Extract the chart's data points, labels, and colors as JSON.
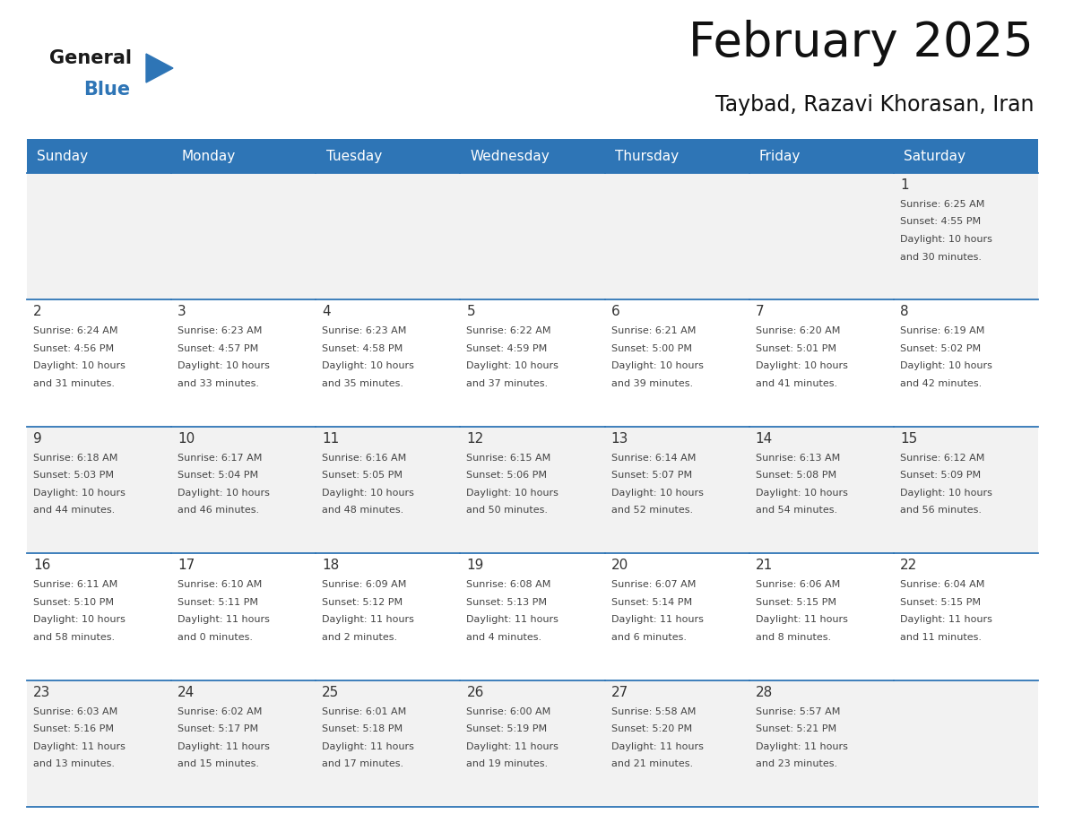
{
  "title": "February 2025",
  "subtitle": "Taybad, Razavi Khorasan, Iran",
  "days_of_week": [
    "Sunday",
    "Monday",
    "Tuesday",
    "Wednesday",
    "Thursday",
    "Friday",
    "Saturday"
  ],
  "header_bg": "#2E75B6",
  "header_text": "#FFFFFF",
  "cell_bg_odd": "#F2F2F2",
  "cell_bg_even": "#FFFFFF",
  "cell_border": "#2E75B6",
  "day_number_color": "#333333",
  "cell_text_color": "#444444",
  "calendar": [
    [
      null,
      null,
      null,
      null,
      null,
      null,
      {
        "day": 1,
        "sunrise": "6:25 AM",
        "sunset": "4:55 PM",
        "daylight": "10 hours",
        "daylight2": "and 30 minutes."
      }
    ],
    [
      {
        "day": 2,
        "sunrise": "6:24 AM",
        "sunset": "4:56 PM",
        "daylight": "10 hours",
        "daylight2": "and 31 minutes."
      },
      {
        "day": 3,
        "sunrise": "6:23 AM",
        "sunset": "4:57 PM",
        "daylight": "10 hours",
        "daylight2": "and 33 minutes."
      },
      {
        "day": 4,
        "sunrise": "6:23 AM",
        "sunset": "4:58 PM",
        "daylight": "10 hours",
        "daylight2": "and 35 minutes."
      },
      {
        "day": 5,
        "sunrise": "6:22 AM",
        "sunset": "4:59 PM",
        "daylight": "10 hours",
        "daylight2": "and 37 minutes."
      },
      {
        "day": 6,
        "sunrise": "6:21 AM",
        "sunset": "5:00 PM",
        "daylight": "10 hours",
        "daylight2": "and 39 minutes."
      },
      {
        "day": 7,
        "sunrise": "6:20 AM",
        "sunset": "5:01 PM",
        "daylight": "10 hours",
        "daylight2": "and 41 minutes."
      },
      {
        "day": 8,
        "sunrise": "6:19 AM",
        "sunset": "5:02 PM",
        "daylight": "10 hours",
        "daylight2": "and 42 minutes."
      }
    ],
    [
      {
        "day": 9,
        "sunrise": "6:18 AM",
        "sunset": "5:03 PM",
        "daylight": "10 hours",
        "daylight2": "and 44 minutes."
      },
      {
        "day": 10,
        "sunrise": "6:17 AM",
        "sunset": "5:04 PM",
        "daylight": "10 hours",
        "daylight2": "and 46 minutes."
      },
      {
        "day": 11,
        "sunrise": "6:16 AM",
        "sunset": "5:05 PM",
        "daylight": "10 hours",
        "daylight2": "and 48 minutes."
      },
      {
        "day": 12,
        "sunrise": "6:15 AM",
        "sunset": "5:06 PM",
        "daylight": "10 hours",
        "daylight2": "and 50 minutes."
      },
      {
        "day": 13,
        "sunrise": "6:14 AM",
        "sunset": "5:07 PM",
        "daylight": "10 hours",
        "daylight2": "and 52 minutes."
      },
      {
        "day": 14,
        "sunrise": "6:13 AM",
        "sunset": "5:08 PM",
        "daylight": "10 hours",
        "daylight2": "and 54 minutes."
      },
      {
        "day": 15,
        "sunrise": "6:12 AM",
        "sunset": "5:09 PM",
        "daylight": "10 hours",
        "daylight2": "and 56 minutes."
      }
    ],
    [
      {
        "day": 16,
        "sunrise": "6:11 AM",
        "sunset": "5:10 PM",
        "daylight": "10 hours",
        "daylight2": "and 58 minutes."
      },
      {
        "day": 17,
        "sunrise": "6:10 AM",
        "sunset": "5:11 PM",
        "daylight": "11 hours",
        "daylight2": "and 0 minutes."
      },
      {
        "day": 18,
        "sunrise": "6:09 AM",
        "sunset": "5:12 PM",
        "daylight": "11 hours",
        "daylight2": "and 2 minutes."
      },
      {
        "day": 19,
        "sunrise": "6:08 AM",
        "sunset": "5:13 PM",
        "daylight": "11 hours",
        "daylight2": "and 4 minutes."
      },
      {
        "day": 20,
        "sunrise": "6:07 AM",
        "sunset": "5:14 PM",
        "daylight": "11 hours",
        "daylight2": "and 6 minutes."
      },
      {
        "day": 21,
        "sunrise": "6:06 AM",
        "sunset": "5:15 PM",
        "daylight": "11 hours",
        "daylight2": "and 8 minutes."
      },
      {
        "day": 22,
        "sunrise": "6:04 AM",
        "sunset": "5:15 PM",
        "daylight": "11 hours",
        "daylight2": "and 11 minutes."
      }
    ],
    [
      {
        "day": 23,
        "sunrise": "6:03 AM",
        "sunset": "5:16 PM",
        "daylight": "11 hours",
        "daylight2": "and 13 minutes."
      },
      {
        "day": 24,
        "sunrise": "6:02 AM",
        "sunset": "5:17 PM",
        "daylight": "11 hours",
        "daylight2": "and 15 minutes."
      },
      {
        "day": 25,
        "sunrise": "6:01 AM",
        "sunset": "5:18 PM",
        "daylight": "11 hours",
        "daylight2": "and 17 minutes."
      },
      {
        "day": 26,
        "sunrise": "6:00 AM",
        "sunset": "5:19 PM",
        "daylight": "11 hours",
        "daylight2": "and 19 minutes."
      },
      {
        "day": 27,
        "sunrise": "5:58 AM",
        "sunset": "5:20 PM",
        "daylight": "11 hours",
        "daylight2": "and 21 minutes."
      },
      {
        "day": 28,
        "sunrise": "5:57 AM",
        "sunset": "5:21 PM",
        "daylight": "11 hours",
        "daylight2": "and 23 minutes."
      },
      null
    ]
  ],
  "logo_general_color": "#1a1a1a",
  "logo_blue_color": "#2E75B6",
  "logo_triangle_color": "#2E75B6",
  "title_fontsize": 38,
  "subtitle_fontsize": 17,
  "header_fontsize": 11,
  "day_num_fontsize": 11,
  "cell_text_fontsize": 8
}
